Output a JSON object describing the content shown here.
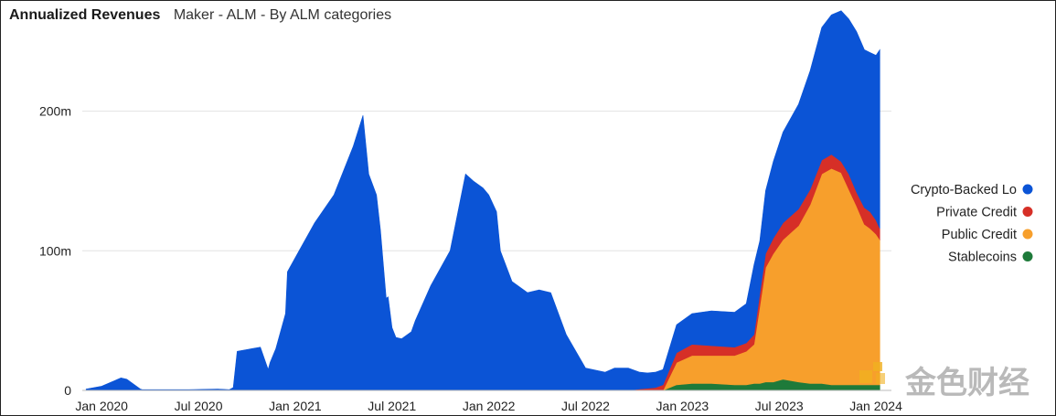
{
  "header": {
    "title": "Annualized Revenues",
    "subtitle": "Maker - ALM - By ALM categories"
  },
  "watermark": {
    "text": "金色财经"
  },
  "chart_data": {
    "type": "area",
    "stacked": true,
    "title": "Annualized Revenues",
    "subtitle": "Maker - ALM - By ALM categories",
    "xlabel": "",
    "ylabel": "",
    "ylim": [
      0,
      260
    ],
    "y_unit": "m",
    "y_ticks": [
      {
        "value": 0,
        "label": "0"
      },
      {
        "value": 100,
        "label": "100m"
      },
      {
        "value": 200,
        "label": "200m"
      }
    ],
    "x_ticks": [
      {
        "value": 2020.0,
        "label": "Jan 2020"
      },
      {
        "value": 2020.5,
        "label": "Jul 2020"
      },
      {
        "value": 2021.0,
        "label": "Jan 2021"
      },
      {
        "value": 2021.5,
        "label": "Jul 2021"
      },
      {
        "value": 2022.0,
        "label": "Jan 2022"
      },
      {
        "value": 2022.5,
        "label": "Jul 2022"
      },
      {
        "value": 2023.0,
        "label": "Jan 2023"
      },
      {
        "value": 2023.5,
        "label": "Jul 2023"
      },
      {
        "value": 2024.0,
        "label": "Jan 2024"
      }
    ],
    "xlim": [
      2019.9,
      2024.08
    ],
    "grid": true,
    "legend_position": "right",
    "x": [
      2019.92,
      2020.0,
      2020.1,
      2020.13,
      2020.2,
      2020.21,
      2020.3,
      2020.45,
      2020.6,
      2020.66,
      2020.68,
      2020.7,
      2020.78,
      2020.82,
      2020.86,
      2020.87,
      2020.9,
      2020.95,
      2020.96,
      2021.02,
      2021.1,
      2021.2,
      2021.3,
      2021.35,
      2021.38,
      2021.42,
      2021.44,
      2021.47,
      2021.48,
      2021.5,
      2021.52,
      2021.55,
      2021.6,
      2021.62,
      2021.7,
      2021.8,
      2021.88,
      2021.92,
      2021.97,
      2022.0,
      2022.04,
      2022.06,
      2022.12,
      2022.2,
      2022.26,
      2022.32,
      2022.4,
      2022.5,
      2022.6,
      2022.65,
      2022.72,
      2022.78,
      2022.82,
      2022.86,
      2022.9,
      2022.97,
      2023.05,
      2023.15,
      2023.27,
      2023.33,
      2023.37,
      2023.4,
      2023.43,
      2023.47,
      2023.52,
      2023.6,
      2023.66,
      2023.72,
      2023.77,
      2023.82,
      2023.86,
      2023.9,
      2023.94,
      2023.97,
      2024.0,
      2024.02
    ],
    "series": [
      {
        "name": "Stablecoins",
        "color": "#1e7a3a",
        "values": [
          0,
          0,
          0,
          0,
          0,
          0,
          0,
          0,
          0,
          0,
          0,
          0,
          0,
          0,
          0,
          0,
          0,
          0,
          0,
          0,
          0,
          0,
          0,
          0,
          0,
          0,
          0,
          0,
          0,
          0,
          0,
          0,
          0,
          0,
          0,
          0,
          0,
          0,
          0,
          0,
          0,
          0,
          0,
          0,
          0,
          0,
          0,
          0,
          0,
          0,
          0,
          0,
          0,
          0,
          0,
          4,
          5,
          5,
          4,
          4,
          5,
          5,
          6,
          6,
          8,
          6,
          5,
          5,
          4,
          4,
          4,
          4,
          4,
          4,
          4,
          4
        ]
      },
      {
        "name": "Public Credit",
        "color": "#f79f2c",
        "values": [
          0,
          0,
          0,
          0,
          0,
          0,
          0,
          0,
          0,
          0,
          0,
          0,
          0,
          0,
          0,
          0,
          0,
          0,
          0,
          0,
          0,
          0,
          0,
          0,
          0,
          0,
          0,
          0,
          0,
          0,
          0,
          0,
          0,
          0,
          0,
          0,
          0,
          0,
          0,
          0,
          0,
          0,
          0,
          0,
          0,
          0,
          0,
          0,
          0,
          0,
          0,
          0,
          0,
          0,
          0,
          16,
          20,
          20,
          21,
          24,
          28,
          55,
          82,
          92,
          100,
          112,
          128,
          150,
          155,
          152,
          140,
          128,
          115,
          112,
          108,
          104
        ]
      },
      {
        "name": "Private Credit",
        "color": "#d62f27",
        "values": [
          0,
          0,
          0,
          0,
          0,
          0,
          0,
          0,
          0,
          0,
          0,
          0,
          0,
          0,
          0,
          0,
          0,
          0,
          0,
          0,
          0,
          0,
          0,
          0,
          0,
          0,
          0,
          0,
          0,
          0,
          0,
          0,
          0,
          0,
          0,
          0,
          0,
          0,
          0,
          0,
          0,
          0,
          0,
          0,
          0,
          0,
          0,
          0,
          0,
          0,
          0,
          1,
          1.5,
          2,
          4,
          7,
          8,
          7,
          6,
          6,
          7,
          9,
          10,
          11,
          12,
          12,
          11,
          10,
          10,
          8,
          11,
          10,
          12,
          12,
          10,
          8
        ]
      },
      {
        "name": "Crypto-Backed Loans",
        "color": "#0b54d6",
        "values": [
          1,
          3,
          9,
          8,
          1,
          0.5,
          0.5,
          0.5,
          1,
          0.5,
          2,
          28,
          30,
          31,
          15,
          20,
          30,
          55,
          85,
          100,
          120,
          140,
          175,
          197,
          155,
          140,
          115,
          66,
          67,
          45,
          38,
          37,
          42,
          50,
          75,
          100,
          155,
          150,
          145,
          140,
          128,
          100,
          78,
          70,
          72,
          70,
          40,
          16,
          13,
          16,
          16,
          12,
          11,
          11,
          11,
          20,
          22,
          25,
          25,
          28,
          50,
          38,
          45,
          55,
          65,
          75,
          85,
          95,
          100,
          108,
          111,
          115,
          113,
          114,
          118,
          128
        ]
      }
    ]
  },
  "legend": [
    {
      "label": "Crypto-Backed Lo",
      "color": "#0b54d6"
    },
    {
      "label": "Private Credit",
      "color": "#d62f27"
    },
    {
      "label": "Public Credit",
      "color": "#f79f2c"
    },
    {
      "label": "Stablecoins",
      "color": "#1e7a3a"
    }
  ]
}
